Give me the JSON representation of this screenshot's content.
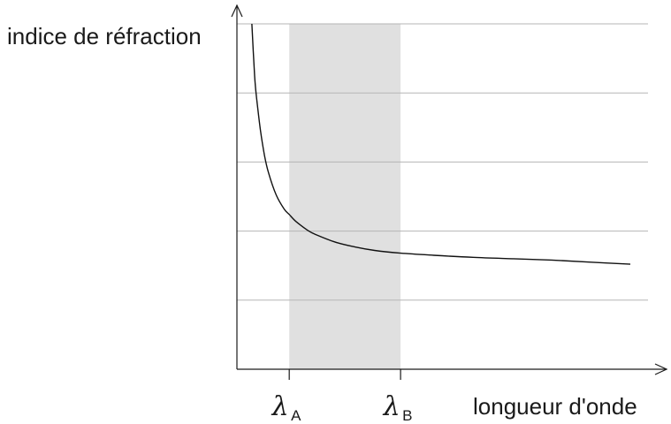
{
  "chart_data": {
    "type": "line",
    "ylabel": "indice de réfraction",
    "xlabel": "longueur d'onde",
    "x_ticks": [
      {
        "symbol": "λ",
        "subscript": "A",
        "x": 0.133
      },
      {
        "symbol": "λ",
        "subscript": "B",
        "x": 0.416
      }
    ],
    "shaded_range": {
      "from": 0.133,
      "to": 0.416,
      "color": "#e0e0e0"
    },
    "grid": {
      "horizontal": true,
      "count": 5,
      "color": "#b5b5b5"
    },
    "xlim": [
      0,
      1.045
    ],
    "ylim": [
      0,
      5
    ],
    "series": [
      {
        "x": [
          0.038,
          0.045,
          0.05,
          0.06,
          0.07,
          0.08,
          0.1,
          0.12,
          0.133,
          0.15,
          0.18,
          0.2,
          0.25,
          0.3,
          0.35,
          0.416,
          0.5,
          0.6,
          0.7,
          0.8,
          0.9,
          1.0
        ],
        "y": [
          5.0,
          4.25,
          3.93,
          3.45,
          3.1,
          2.85,
          2.52,
          2.32,
          2.24,
          2.14,
          2.01,
          1.95,
          1.84,
          1.77,
          1.72,
          1.68,
          1.65,
          1.62,
          1.6,
          1.58,
          1.55,
          1.52
        ]
      }
    ]
  }
}
